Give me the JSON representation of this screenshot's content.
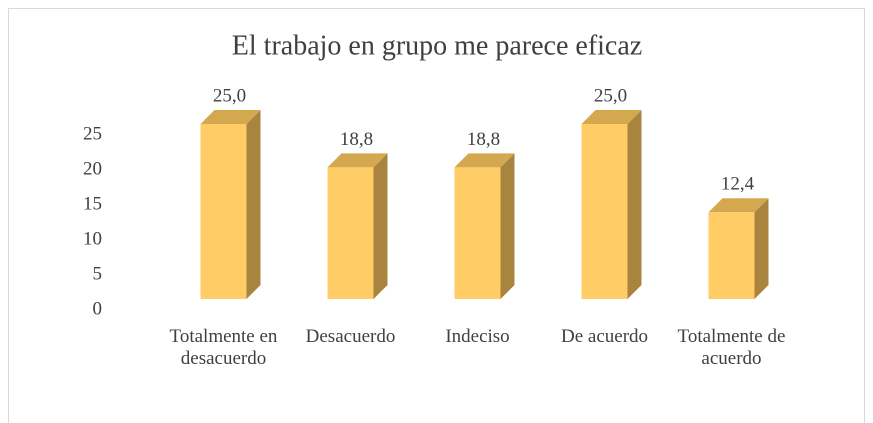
{
  "chart_data": {
    "type": "bar3d",
    "title": "El trabajo en grupo me parece eficaz",
    "categories": [
      "Totalmente en desacuerdo",
      "Desacuerdo",
      "Indeciso",
      "De acuerdo",
      "Totalmente de acuerdo"
    ],
    "values": [
      25.0,
      18.8,
      18.8,
      25.0,
      12.4
    ],
    "value_labels": [
      "25,0",
      "18,8",
      "18,8",
      "25,0",
      "12,4"
    ],
    "color": "#ffcc66",
    "ylim": [
      0,
      25
    ],
    "yticks": [
      0,
      5,
      10,
      15,
      20,
      25
    ],
    "grid": false
  }
}
